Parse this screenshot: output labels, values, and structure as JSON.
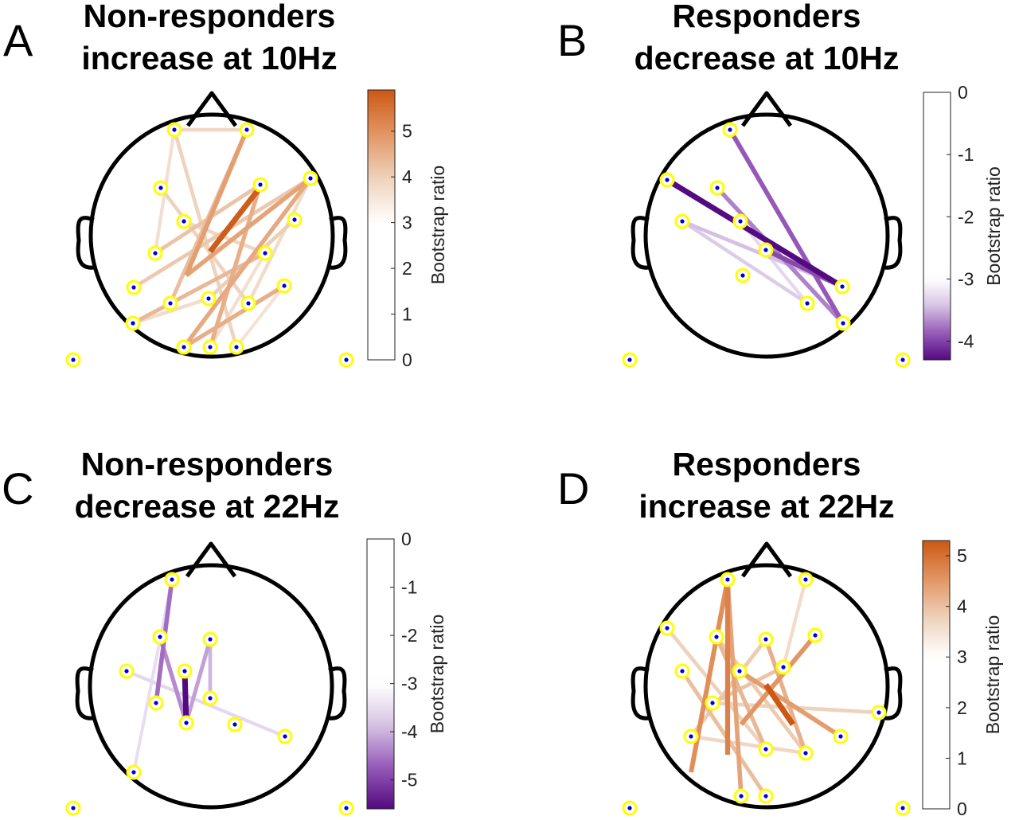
{
  "panels": [
    {
      "letter": "A",
      "title_line1": "Non-responders",
      "title_line2": "increase at 10Hz",
      "colorbar": {
        "label": "Bootstrap ratio",
        "ticks": [
          "0",
          "1",
          "2",
          "3",
          "4",
          "5"
        ],
        "scheme": "orange",
        "min": 0,
        "max": 5.9,
        "threshold": 3
      },
      "electrodes": [
        [
          219,
          163
        ],
        [
          310,
          163
        ],
        [
          202,
          236
        ],
        [
          327,
          232
        ],
        [
          390,
          224
        ],
        [
          231,
          278
        ],
        [
          370,
          276
        ],
        [
          195,
          318
        ],
        [
          333,
          318
        ],
        [
          168,
          361
        ],
        [
          214,
          381
        ],
        [
          262,
          375
        ],
        [
          312,
          381
        ],
        [
          357,
          359
        ],
        [
          167,
          406
        ],
        [
          231,
          436
        ],
        [
          264,
          436
        ],
        [
          297,
          436
        ],
        [
          92,
          452
        ],
        [
          435,
          452
        ]
      ],
      "connections": [
        {
          "from": [
            264,
            316
          ],
          "to": [
            327,
            235
          ],
          "value": 5.8
        },
        {
          "from": [
            234,
            346
          ],
          "to": [
            310,
            163
          ],
          "value": 4.6
        },
        {
          "from": [
            234,
            346
          ],
          "to": [
            390,
            224
          ],
          "value": 4.5
        },
        {
          "from": [
            231,
            436
          ],
          "to": [
            390,
            224
          ],
          "value": 4.4
        },
        {
          "from": [
            264,
            436
          ],
          "to": [
            327,
            232
          ],
          "value": 4.3
        },
        {
          "from": [
            231,
            436
          ],
          "to": [
            357,
            359
          ],
          "value": 4.3
        },
        {
          "from": [
            167,
            406
          ],
          "to": [
            333,
            318
          ],
          "value": 4.1
        },
        {
          "from": [
            214,
            381
          ],
          "to": [
            310,
            163
          ],
          "value": 4.0
        },
        {
          "from": [
            195,
            318
          ],
          "to": [
            327,
            232
          ],
          "value": 3.9
        },
        {
          "from": [
            168,
            361
          ],
          "to": [
            390,
            224
          ],
          "value": 3.8
        },
        {
          "from": [
            262,
            375
          ],
          "to": [
            370,
            276
          ],
          "value": 3.7
        },
        {
          "from": [
            219,
            163
          ],
          "to": [
            297,
            436
          ],
          "value": 3.6
        },
        {
          "from": [
            202,
            236
          ],
          "to": [
            312,
            381
          ],
          "value": 3.6
        },
        {
          "from": [
            231,
            278
          ],
          "to": [
            333,
            318
          ],
          "value": 3.5
        },
        {
          "from": [
            219,
            163
          ],
          "to": [
            310,
            163
          ],
          "value": 3.5
        },
        {
          "from": [
            167,
            406
          ],
          "to": [
            262,
            375
          ],
          "value": 3.4
        },
        {
          "from": [
            195,
            318
          ],
          "to": [
            219,
            163
          ],
          "value": 3.3
        },
        {
          "from": [
            312,
            381
          ],
          "to": [
            390,
            224
          ],
          "value": 3.4
        },
        {
          "from": [
            264,
            436
          ],
          "to": [
            333,
            318
          ],
          "value": 3.3
        },
        {
          "from": [
            297,
            436
          ],
          "to": [
            357,
            359
          ],
          "value": 3.2
        }
      ]
    },
    {
      "letter": "B",
      "title_line1": "Responders",
      "title_line2": "decrease at 10Hz",
      "colorbar": {
        "label": "Bootstrap ratio",
        "ticks": [
          "0",
          "-1",
          "-2",
          "-3",
          "-4"
        ],
        "scheme": "purple",
        "min": -4.3,
        "max": 0,
        "threshold": -3
      },
      "electrodes": [
        [
          917,
          163
        ],
        [
          838,
          226
        ],
        [
          901,
          236
        ],
        [
          857,
          278
        ],
        [
          930,
          278
        ],
        [
          962,
          314
        ],
        [
          933,
          346
        ],
        [
          1058,
          360
        ],
        [
          1014,
          381
        ],
        [
          1059,
          406
        ],
        [
          791,
          452
        ],
        [
          1134,
          452
        ]
      ],
      "connections": [
        {
          "from": [
            838,
            226
          ],
          "to": [
            1058,
            360
          ],
          "value": -4.3
        },
        {
          "from": [
            917,
            163
          ],
          "to": [
            1059,
            406
          ],
          "value": -3.8
        },
        {
          "from": [
            962,
            314
          ],
          "to": [
            1058,
            360
          ],
          "value": -3.9
        },
        {
          "from": [
            901,
            236
          ],
          "to": [
            1059,
            406
          ],
          "value": -3.6
        },
        {
          "from": [
            857,
            278
          ],
          "to": [
            1058,
            360
          ],
          "value": -3.3
        },
        {
          "from": [
            857,
            278
          ],
          "to": [
            1014,
            381
          ],
          "value": -3.2
        },
        {
          "from": [
            930,
            278
          ],
          "to": [
            1014,
            381
          ],
          "value": -3.1
        },
        {
          "from": [
            1058,
            360
          ],
          "to": [
            962,
            314
          ],
          "value": -3.0
        }
      ]
    },
    {
      "letter": "C",
      "title_line1": "Non-responders",
      "title_line2": "decrease at 22Hz",
      "colorbar": {
        "label": "Bootstrap ratio",
        "ticks": [
          "0",
          "-1",
          "-2",
          "-3",
          "-4",
          "-5"
        ],
        "scheme": "purple",
        "min": -5.6,
        "max": 0,
        "threshold": -3
      },
      "electrodes": [
        [
          216,
          728
        ],
        [
          201,
          800
        ],
        [
          264,
          803
        ],
        [
          232,
          843
        ],
        [
          159,
          843
        ],
        [
          196,
          883
        ],
        [
          264,
          877
        ],
        [
          234,
          908
        ],
        [
          295,
          910
        ],
        [
          358,
          925
        ],
        [
          168,
          970
        ],
        [
          92,
          1015
        ],
        [
          435,
          1015
        ]
      ],
      "connections": [
        {
          "from": [
            232,
            843
          ],
          "to": [
            234,
            908
          ],
          "value": -5.6
        },
        {
          "from": [
            216,
            728
          ],
          "to": [
            196,
            883
          ],
          "value": -4.4
        },
        {
          "from": [
            201,
            800
          ],
          "to": [
            234,
            908
          ],
          "value": -4.1
        },
        {
          "from": [
            264,
            803
          ],
          "to": [
            234,
            908
          ],
          "value": -3.9
        },
        {
          "from": [
            264,
            803
          ],
          "to": [
            264,
            877
          ],
          "value": -3.7
        },
        {
          "from": [
            159,
            843
          ],
          "to": [
            358,
            925
          ],
          "value": -3.2
        },
        {
          "from": [
            216,
            728
          ],
          "to": [
            168,
            970
          ],
          "value": -3.1
        }
      ]
    },
    {
      "letter": "D",
      "title_line1": "Responders",
      "title_line2": "increase at 22Hz",
      "colorbar": {
        "label": "Bootstrap ratio",
        "ticks": [
          "0",
          "1",
          "2",
          "3",
          "4",
          "5"
        ],
        "scheme": "orange",
        "min": 0,
        "max": 5.3,
        "threshold": 3
      },
      "electrodes": [
        [
          914,
          728
        ],
        [
          1012,
          728
        ],
        [
          838,
          789
        ],
        [
          900,
          800
        ],
        [
          962,
          803
        ],
        [
          1024,
          798
        ],
        [
          857,
          843
        ],
        [
          929,
          843
        ],
        [
          984,
          838
        ],
        [
          895,
          883
        ],
        [
          1104,
          895
        ],
        [
          868,
          925
        ],
        [
          962,
          941
        ],
        [
          1012,
          946
        ],
        [
          1056,
          925
        ],
        [
          931,
          1000
        ],
        [
          962,
          1000
        ],
        [
          791,
          1015
        ],
        [
          1134,
          1015
        ]
      ],
      "connections": [
        {
          "from": [
            962,
            860
          ],
          "to": [
            996,
            910
          ],
          "value": 5.3
        },
        {
          "from": [
            914,
            728
          ],
          "to": [
            914,
            948
          ],
          "value": 4.7
        },
        {
          "from": [
            914,
            728
          ],
          "to": [
            868,
            970
          ],
          "value": 4.5
        },
        {
          "from": [
            1024,
            798
          ],
          "to": [
            931,
            910
          ],
          "value": 4.4
        },
        {
          "from": [
            929,
            843
          ],
          "to": [
            1056,
            925
          ],
          "value": 4.3
        },
        {
          "from": [
            914,
            728
          ],
          "to": [
            931,
            1000
          ],
          "value": 4.2
        },
        {
          "from": [
            962,
            803
          ],
          "to": [
            1012,
            946
          ],
          "value": 4.0
        },
        {
          "from": [
            900,
            800
          ],
          "to": [
            962,
            941
          ],
          "value": 3.9
        },
        {
          "from": [
            857,
            843
          ],
          "to": [
            962,
            1000
          ],
          "value": 3.8
        },
        {
          "from": [
            984,
            838
          ],
          "to": [
            895,
            883
          ],
          "value": 3.7
        },
        {
          "from": [
            1012,
            728
          ],
          "to": [
            984,
            838
          ],
          "value": 3.3
        },
        {
          "from": [
            838,
            789
          ],
          "to": [
            962,
            941
          ],
          "value": 3.5
        },
        {
          "from": [
            895,
            883
          ],
          "to": [
            1104,
            895
          ],
          "value": 3.5
        },
        {
          "from": [
            868,
            925
          ],
          "to": [
            1012,
            946
          ],
          "value": 3.4
        },
        {
          "from": [
            900,
            800
          ],
          "to": [
            1012,
            946
          ],
          "value": 3.6
        },
        {
          "from": [
            962,
            803
          ],
          "to": [
            868,
            925
          ],
          "value": 3.6
        }
      ]
    }
  ]
}
